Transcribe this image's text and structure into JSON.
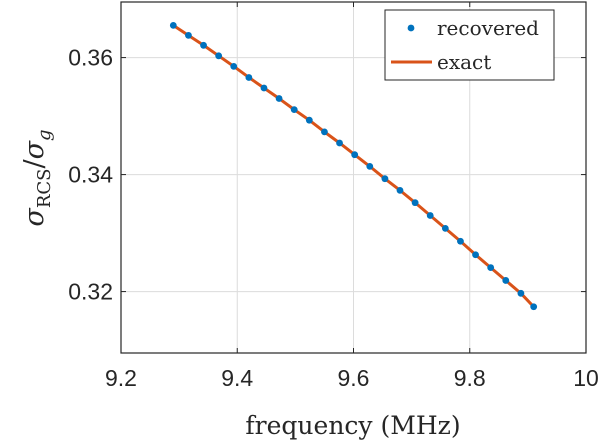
{
  "chart_data": {
    "type": "line",
    "xlabel": "frequency (MHz)",
    "ylabel": {
      "sigma": "σ",
      "sub1": "RCS",
      "sep": "/",
      "sigma2": "σ",
      "sub2": "g"
    },
    "xlim": [
      9.2,
      10
    ],
    "ylim": [
      0.3095,
      0.3695
    ],
    "xticks": [
      9.2,
      9.4,
      9.6,
      9.8,
      10
    ],
    "xtick_labels": [
      "9.2",
      "9.4",
      "9.6",
      "9.8",
      "10"
    ],
    "yticks": [
      0.32,
      0.34,
      0.36
    ],
    "ytick_labels": [
      "0.32",
      "0.34",
      "0.36"
    ],
    "grid": true,
    "legend_position": "top-right",
    "series": [
      {
        "name": "recovered",
        "style": "markers",
        "color": "#0072BD",
        "x": [
          9.29,
          9.316,
          9.342,
          9.368,
          9.394,
          9.42,
          9.446,
          9.472,
          9.498,
          9.524,
          9.55,
          9.576,
          9.602,
          9.628,
          9.654,
          9.68,
          9.706,
          9.732,
          9.758,
          9.784,
          9.81,
          9.836,
          9.862,
          9.888,
          9.91
        ],
        "y": [
          0.3655,
          0.3638,
          0.3621,
          0.3603,
          0.3585,
          0.3566,
          0.3548,
          0.353,
          0.3511,
          0.3493,
          0.3473,
          0.3454,
          0.3434,
          0.3414,
          0.3393,
          0.3373,
          0.3352,
          0.333,
          0.3308,
          0.3286,
          0.3263,
          0.3241,
          0.3219,
          0.3197,
          0.3174
        ]
      },
      {
        "name": "exact",
        "style": "line",
        "color": "#D95319",
        "x": [
          9.29,
          9.316,
          9.342,
          9.368,
          9.394,
          9.42,
          9.446,
          9.472,
          9.498,
          9.524,
          9.55,
          9.576,
          9.602,
          9.628,
          9.654,
          9.68,
          9.706,
          9.732,
          9.758,
          9.784,
          9.81,
          9.836,
          9.862,
          9.888,
          9.91
        ],
        "y": [
          0.3655,
          0.3638,
          0.3621,
          0.3603,
          0.3585,
          0.3566,
          0.3548,
          0.353,
          0.3511,
          0.3493,
          0.3473,
          0.3454,
          0.3434,
          0.3414,
          0.3393,
          0.3373,
          0.3352,
          0.333,
          0.3308,
          0.3286,
          0.3263,
          0.3241,
          0.3219,
          0.3197,
          0.3174
        ]
      }
    ]
  }
}
